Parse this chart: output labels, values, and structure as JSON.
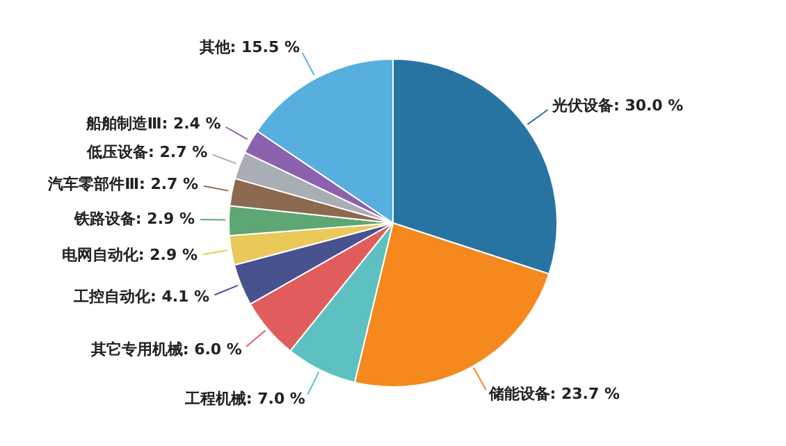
{
  "chart_data": {
    "type": "pie",
    "categories": [
      "光伏设备",
      "储能设备",
      "工程机械",
      "其它专用机械",
      "工控自动化",
      "电网自动化",
      "铁路设备",
      "汽车零部件Ⅲ",
      "低压设备",
      "船舶制造Ⅲ",
      "其他"
    ],
    "values": [
      30.0,
      23.7,
      7.0,
      6.0,
      4.1,
      2.9,
      2.9,
      2.7,
      2.7,
      2.4,
      15.5
    ],
    "value_labels": [
      "30.0 %",
      "23.7 %",
      "7.0 %",
      "6.0 %",
      "4.1 %",
      "2.9 %",
      "2.9 %",
      "2.7 %",
      "2.7 %",
      "2.4 %",
      "15.5 %"
    ],
    "colors": [
      "#2774a3",
      "#f5891d",
      "#5ec1c1",
      "#e15d5d",
      "#47528f",
      "#e8c95a",
      "#5ea673",
      "#8b6a50",
      "#a9aeb4",
      "#8c62ae",
      "#56afdf"
    ]
  }
}
